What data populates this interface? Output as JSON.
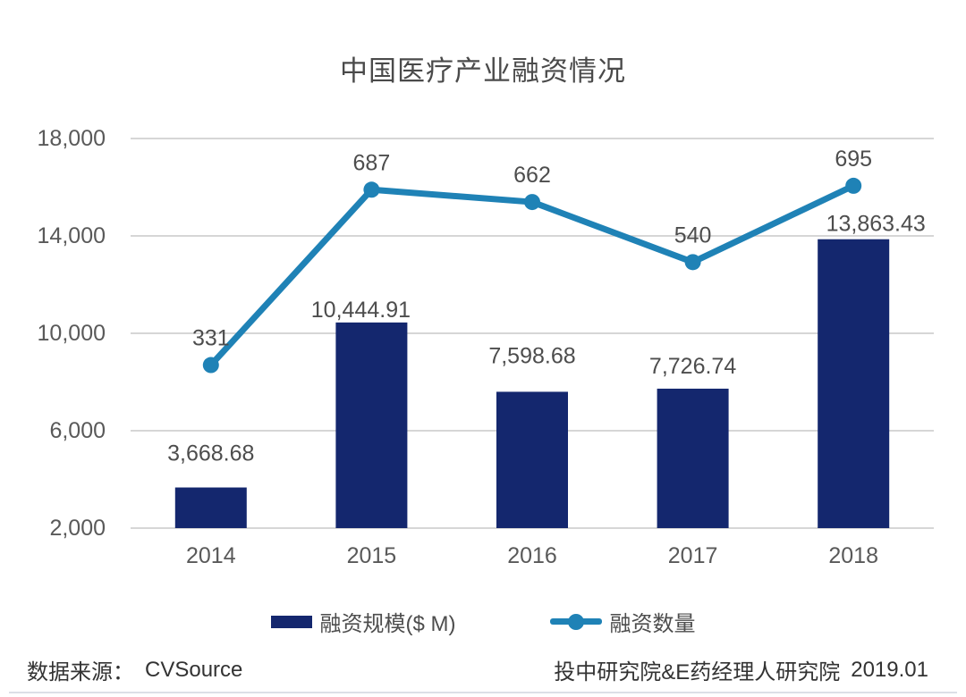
{
  "title": "中国医疗产业融资情况",
  "chart_data": {
    "type": "bar",
    "subtype": "combo-bar-line",
    "title": "中国医疗产业融资情况",
    "categories": [
      "2014",
      "2015",
      "2016",
      "2017",
      "2018"
    ],
    "series": [
      {
        "name": "融资规模($ M)",
        "type": "bar",
        "axis": "left",
        "values": [
          3668.68,
          10444.91,
          7598.68,
          7726.74,
          13863.43
        ],
        "labels": [
          "3,668.68",
          "10,444.91",
          "7,598.68",
          "7,726.74",
          "13,863.43"
        ]
      },
      {
        "name": "融资数量",
        "type": "line",
        "axis": "right",
        "values": [
          331,
          687,
          662,
          540,
          695
        ],
        "labels": [
          "331",
          "687",
          "662",
          "540",
          "695"
        ]
      }
    ],
    "left_axis": {
      "min": 2000,
      "max": 18000,
      "tick_values": [
        18000,
        14000,
        10000,
        6000,
        2000
      ],
      "ticks": [
        "18,000",
        "14,000",
        "10,000",
        "6,000",
        "2,000"
      ]
    },
    "right_axis": {
      "min": 0,
      "max": 800,
      "visible": false
    },
    "grid": "horizontal",
    "legend_position": "bottom",
    "xlabel": "",
    "ylabel": ""
  },
  "legend": {
    "bar_label": "融资规模($ M)",
    "line_label": "融资数量"
  },
  "footer": {
    "source_label": "数据来源：",
    "source_value": "CVSource",
    "attribution": "投中研究院&E药经理人研究院",
    "date": "2019.01"
  },
  "colors": {
    "bar": "#14276e",
    "line": "#1f82b6",
    "grid": "#c9c9c9",
    "axis_text": "#595959",
    "value_text": "#4d4d4d",
    "title_text": "#4a4a4a",
    "footer_text": "#333333"
  }
}
